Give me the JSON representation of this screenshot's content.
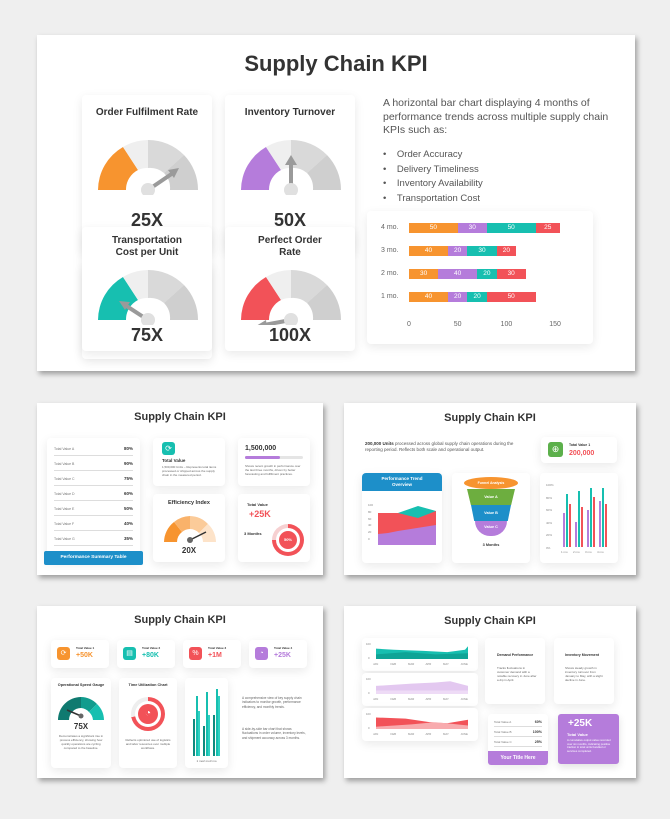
{
  "main_slide": {
    "title": "Supply Chain KPI",
    "gauges": [
      {
        "label": "Order Fulfilment Rate",
        "value": "25X",
        "color": "#F7942F"
      },
      {
        "label": "Inventory Turnover",
        "value": "50X",
        "color": "#B57CDB"
      },
      {
        "label": "Transportation Cost per Unit",
        "value": "75X",
        "color": "#17BFB0"
      },
      {
        "label": "Perfect Order Rate",
        "value": "100X",
        "color": "#F25258"
      }
    ],
    "description": "A horizontal bar chart displaying 4 months of performance trends across multiple supply chain KPIs such as:",
    "bullets": [
      "Order Accuracy",
      "Delivery Timeliness",
      "Inventory Availability",
      "Transportation Cost"
    ]
  },
  "chart_data": {
    "type": "bar",
    "orientation": "horizontal-stacked",
    "categories": [
      "4 mo.",
      "3 mo.",
      "2 mo.",
      "1 mo."
    ],
    "series": [
      {
        "name": "Order Accuracy",
        "color": "#F7942F",
        "values": [
          50,
          40,
          30,
          40
        ]
      },
      {
        "name": "Delivery Timeliness",
        "color": "#B57CDB",
        "values": [
          30,
          20,
          40,
          20
        ]
      },
      {
        "name": "Inventory Availability",
        "color": "#17BFB0",
        "values": [
          50,
          30,
          20,
          20
        ]
      },
      {
        "name": "Transportation Cost",
        "color": "#F25258",
        "values": [
          25,
          20,
          30,
          50
        ]
      }
    ],
    "xticks": [
      "0",
      "50",
      "100",
      "150"
    ],
    "xlim": [
      0,
      150
    ]
  },
  "thumb1": {
    "title": "Supply Chain KPI",
    "table_rows": [
      {
        "label": "Total Value A",
        "value": "80%"
      },
      {
        "label": "Total Value B",
        "value": "90%"
      },
      {
        "label": "Total Value C",
        "value": "75%"
      },
      {
        "label": "Total Value D",
        "value": "60%"
      },
      {
        "label": "Total Value E",
        "value": "50%"
      },
      {
        "label": "Total Value F",
        "value": "40%"
      },
      {
        "label": "Total Value G",
        "value": "35%"
      }
    ],
    "table_title": "Performance Summary Table",
    "total_value_title": "Total Value",
    "total_value_desc": "1,500,000 Units – Represents total items processed or shipped across the supply chain in the measured period.",
    "big_number": "1,500,000",
    "big_number_desc": "Shows recent growth in performance over the last three months, driven by better forecasting and fulfillment practices.",
    "efficiency_title": "Efficiency Index",
    "efficiency_value": "20X",
    "tv_label": "Total Value",
    "tv_value": "+25K",
    "tv_period": "3 Months",
    "tv_pct": "50%"
  },
  "thumb2": {
    "title": "Supply Chain KPI",
    "intro_bold": "200,000 Units",
    "intro_rest": " processed across global supply chain operations during the reporting period. Reflects both scale and operational output.",
    "tv_label": "Total Value 1",
    "tv_value": "200,000",
    "trend_title": "Performance Trend Overview",
    "trend_yticks": [
      "100",
      "80",
      "60",
      "40",
      "20",
      "0"
    ],
    "funnel": [
      "Funnel Analysis",
      "Value A",
      "Value B",
      "Value C"
    ],
    "funnel_footer": "3 Months",
    "bar_yticks": [
      "100%",
      "80%",
      "60%",
      "40%",
      "20%",
      "0%"
    ],
    "bar_xticks": [
      "1 mo",
      "2 mo",
      "3 mo",
      "4 mo"
    ]
  },
  "thumb3": {
    "title": "Supply Chain KPI",
    "kpis": [
      {
        "label": "Total Value 1",
        "value": "+50K",
        "color": "#F7942F"
      },
      {
        "label": "Total Value 2",
        "value": "+80K",
        "color": "#17BFB0"
      },
      {
        "label": "Total Value 3",
        "value": "+1M",
        "color": "#F25258"
      },
      {
        "label": "Total Value 4",
        "value": "+25K",
        "color": "#B57CDB"
      }
    ],
    "speed_title": "Operational Speed Gauge",
    "speed_value": "75X",
    "speed_desc": "Demonstrates a significant rise in process efficiency, showing how quickly operations are cycling compared to the baseline.",
    "time_title": "Time Utilization Chart",
    "time_desc": "Reflects optimized use of logistics and labor resources over multiple workflows.",
    "bar_xticks": "1 mo2 mo3 mo",
    "para1": "A comprehensive view of key supply chain indicators to monitor growth, performance efficiency, and monthly trends.",
    "para2": "A side-by-side bar chart that shows fluctuations in order volume, inventory levels, and shipment accuracy across 3 months."
  },
  "thumb4": {
    "title": "Supply Chain KPI",
    "months": [
      "JAN",
      "FEB",
      "MAR",
      "APR",
      "MAY",
      "JUNE"
    ],
    "yticks": [
      "100",
      "0"
    ],
    "demand_title": "Demand Performance",
    "demand_desc": "Tracks fluctuations in customer demand with a notable recovery in June after a dip in April.",
    "inventory_title": "Inventory Movement",
    "inventory_desc": "Shows steady growth in inventory turnover from January to May, with a slight decline in June.",
    "table_rows": [
      {
        "label": "Total Value A",
        "value": "60%"
      },
      {
        "label": "Total Value B",
        "value": "100%"
      },
      {
        "label": "Total Value C",
        "value": "25%"
      }
    ],
    "table_title": "Your Title Here",
    "big_value": "+25K",
    "big_label": "Total Value",
    "big_desc": "A cumulative output value recorded over six months, indicating positive traction in total units handled or services completed."
  }
}
